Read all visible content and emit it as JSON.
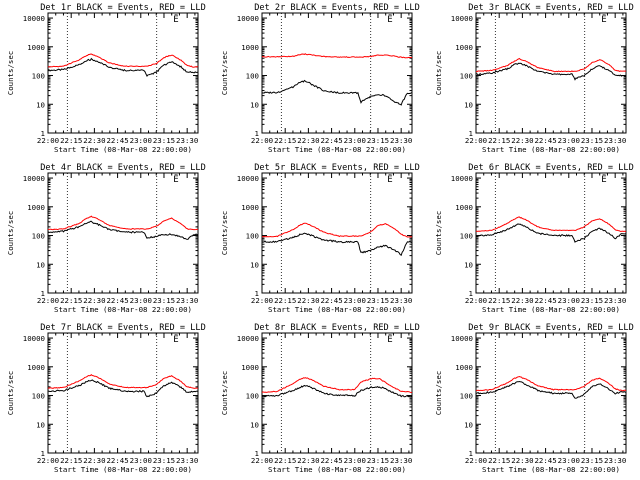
{
  "figure": {
    "x_axis_label": "Start Time (08-Mar-08 22:00:00)",
    "y_axis_label": "Counts/sec",
    "x_tick_labels": [
      "22:00",
      "22:15",
      "22:30",
      "22:45",
      "23:00",
      "23:15",
      "23:30"
    ],
    "y_tick_labels": [
      "1",
      "10",
      "100",
      "1000",
      "10000"
    ],
    "colors": {
      "events": "#000000",
      "lld": "#ff0000",
      "axes": "#000000",
      "background": "#ffffff"
    },
    "corner_glyph": "Ë"
  },
  "chart_data": [
    {
      "type": "line",
      "title": "Det 1r BLACK = Events, RED = LLD",
      "xlim": [
        0,
        97
      ],
      "ylim": [
        1,
        15000
      ],
      "yscale": "log",
      "grid": false,
      "x": [
        0,
        10,
        20,
        25,
        28,
        32,
        40,
        50,
        60,
        62,
        64,
        70,
        75,
        80,
        86,
        90,
        94,
        97
      ],
      "series": [
        {
          "name": "Events",
          "values": [
            150,
            160,
            240,
            330,
            370,
            310,
            190,
            150,
            150,
            150,
            100,
            130,
            230,
            300,
            200,
            130,
            130,
            130
          ]
        },
        {
          "name": "LLD",
          "values": [
            200,
            210,
            350,
            500,
            560,
            460,
            270,
            210,
            210,
            210,
            210,
            260,
            420,
            520,
            340,
            220,
            200,
            200
          ]
        }
      ],
      "markers_x": [
        12.5,
        70.3
      ]
    },
    {
      "type": "line",
      "title": "Det 2r BLACK = Events, RED = LLD",
      "xlim": [
        0,
        97
      ],
      "ylim": [
        1,
        15000
      ],
      "yscale": "log",
      "grid": false,
      "x": [
        0,
        10,
        20,
        25,
        28,
        32,
        40,
        50,
        60,
        62,
        64,
        70,
        75,
        80,
        86,
        90,
        94,
        97
      ],
      "series": [
        {
          "name": "Events",
          "values": [
            25,
            26,
            40,
            60,
            65,
            50,
            30,
            25,
            25,
            25,
            12,
            18,
            22,
            20,
            12,
            10,
            25,
            25
          ]
        },
        {
          "name": "LLD",
          "values": [
            450,
            450,
            470,
            540,
            560,
            520,
            460,
            440,
            440,
            440,
            440,
            460,
            510,
            520,
            470,
            430,
            420,
            420
          ]
        }
      ],
      "markers_x": [
        12.5,
        70.3
      ]
    },
    {
      "type": "line",
      "title": "Det 3r BLACK = Events, RED = LLD",
      "xlim": [
        0,
        97
      ],
      "ylim": [
        1,
        15000
      ],
      "yscale": "log",
      "grid": false,
      "x": [
        0,
        10,
        20,
        25,
        28,
        32,
        40,
        50,
        60,
        62,
        64,
        70,
        75,
        80,
        86,
        90,
        94,
        97
      ],
      "series": [
        {
          "name": "Events",
          "values": [
            110,
            120,
            170,
            240,
            270,
            230,
            140,
            110,
            110,
            110,
            75,
            100,
            170,
            220,
            150,
            100,
            100,
            100
          ]
        },
        {
          "name": "LLD",
          "values": [
            140,
            150,
            220,
            320,
            380,
            320,
            190,
            140,
            140,
            140,
            140,
            170,
            280,
            360,
            240,
            150,
            140,
            140
          ]
        }
      ],
      "markers_x": [
        12.5,
        70.3
      ]
    },
    {
      "type": "line",
      "title": "Det 4r BLACK = Events, RED = LLD",
      "xlim": [
        0,
        97
      ],
      "ylim": [
        1,
        15000
      ],
      "yscale": "log",
      "grid": false,
      "x": [
        0,
        10,
        20,
        25,
        28,
        32,
        40,
        50,
        60,
        62,
        64,
        70,
        75,
        80,
        86,
        90,
        94,
        97
      ],
      "series": [
        {
          "name": "Events",
          "values": [
            130,
            140,
            200,
            270,
            300,
            250,
            160,
            130,
            130,
            130,
            80,
            95,
            110,
            110,
            90,
            70,
            110,
            110
          ]
        },
        {
          "name": "LLD",
          "values": [
            160,
            170,
            260,
            400,
            460,
            380,
            220,
            170,
            170,
            170,
            170,
            210,
            320,
            400,
            260,
            170,
            160,
            160
          ]
        }
      ],
      "markers_x": [
        12.5,
        70.3
      ]
    },
    {
      "type": "line",
      "title": "Det 5r BLACK = Events, RED = LLD",
      "xlim": [
        0,
        97
      ],
      "ylim": [
        1,
        15000
      ],
      "yscale": "log",
      "grid": false,
      "x": [
        0,
        10,
        20,
        25,
        28,
        32,
        40,
        50,
        60,
        62,
        64,
        70,
        75,
        80,
        86,
        90,
        94,
        97
      ],
      "series": [
        {
          "name": "Events",
          "values": [
            60,
            62,
            85,
            110,
            120,
            100,
            70,
            60,
            60,
            60,
            25,
            30,
            40,
            45,
            30,
            22,
            60,
            60
          ]
        },
        {
          "name": "LLD",
          "values": [
            90,
            95,
            160,
            240,
            270,
            220,
            130,
            95,
            95,
            95,
            95,
            130,
            220,
            260,
            170,
            110,
            90,
            90
          ]
        }
      ],
      "markers_x": [
        12.5,
        70.3
      ]
    },
    {
      "type": "line",
      "title": "Det 6r BLACK = Events, RED = LLD",
      "xlim": [
        0,
        97
      ],
      "ylim": [
        1,
        15000
      ],
      "yscale": "log",
      "grid": false,
      "x": [
        0,
        10,
        20,
        25,
        28,
        32,
        40,
        50,
        60,
        62,
        64,
        70,
        75,
        80,
        86,
        90,
        94,
        97
      ],
      "series": [
        {
          "name": "Events",
          "values": [
            100,
            105,
            160,
            220,
            250,
            200,
            120,
            100,
            100,
            100,
            60,
            80,
            140,
            180,
            120,
            80,
            110,
            110
          ]
        },
        {
          "name": "LLD",
          "values": [
            140,
            150,
            260,
            380,
            440,
            360,
            200,
            150,
            150,
            150,
            150,
            200,
            320,
            390,
            250,
            160,
            140,
            140
          ]
        }
      ],
      "markers_x": [
        12.5,
        70.3
      ]
    },
    {
      "type": "line",
      "title": "Det 7r BLACK = Events, RED = LLD",
      "xlim": [
        0,
        97
      ],
      "ylim": [
        1,
        15000
      ],
      "yscale": "log",
      "grid": false,
      "x": [
        0,
        10,
        20,
        25,
        28,
        32,
        40,
        50,
        60,
        62,
        64,
        70,
        75,
        80,
        86,
        90,
        94,
        97
      ],
      "series": [
        {
          "name": "Events",
          "values": [
            140,
            150,
            220,
            300,
            340,
            290,
            180,
            140,
            140,
            140,
            90,
            120,
            220,
            290,
            190,
            130,
            140,
            140
          ]
        },
        {
          "name": "LLD",
          "values": [
            180,
            190,
            320,
            460,
            520,
            440,
            250,
            190,
            190,
            190,
            190,
            240,
            400,
            480,
            310,
            200,
            180,
            180
          ]
        }
      ],
      "markers_x": [
        12.5,
        70.3
      ]
    },
    {
      "type": "line",
      "title": "Det 8r BLACK = Events, RED = LLD",
      "xlim": [
        0,
        97
      ],
      "ylim": [
        1,
        15000
      ],
      "yscale": "log",
      "grid": false,
      "x": [
        0,
        10,
        20,
        25,
        28,
        32,
        40,
        50,
        55,
        60,
        64,
        68,
        72,
        76,
        80,
        86,
        90,
        97
      ],
      "series": [
        {
          "name": "Events",
          "values": [
            95,
            100,
            150,
            200,
            220,
            190,
            120,
            100,
            100,
            100,
            150,
            180,
            200,
            200,
            170,
            120,
            95,
            95
          ]
        },
        {
          "name": "LLD",
          "values": [
            130,
            140,
            260,
            380,
            420,
            360,
            210,
            160,
            160,
            160,
            300,
            350,
            400,
            380,
            280,
            180,
            140,
            130
          ]
        }
      ],
      "markers_x": [
        12.5,
        70.3
      ]
    },
    {
      "type": "line",
      "title": "Det 9r BLACK = Events, RED = LLD",
      "xlim": [
        0,
        97
      ],
      "ylim": [
        1,
        15000
      ],
      "yscale": "log",
      "grid": false,
      "x": [
        0,
        10,
        20,
        25,
        28,
        32,
        40,
        50,
        60,
        62,
        64,
        70,
        75,
        80,
        86,
        90,
        94,
        97
      ],
      "series": [
        {
          "name": "Events",
          "values": [
            120,
            130,
            200,
            270,
            300,
            250,
            150,
            120,
            120,
            120,
            80,
            110,
            200,
            260,
            170,
            120,
            130,
            130
          ]
        },
        {
          "name": "LLD",
          "values": [
            150,
            160,
            270,
            400,
            450,
            380,
            220,
            160,
            160,
            160,
            160,
            210,
            340,
            400,
            260,
            170,
            150,
            150
          ]
        }
      ],
      "markers_x": [
        12.5,
        70.3
      ]
    }
  ]
}
